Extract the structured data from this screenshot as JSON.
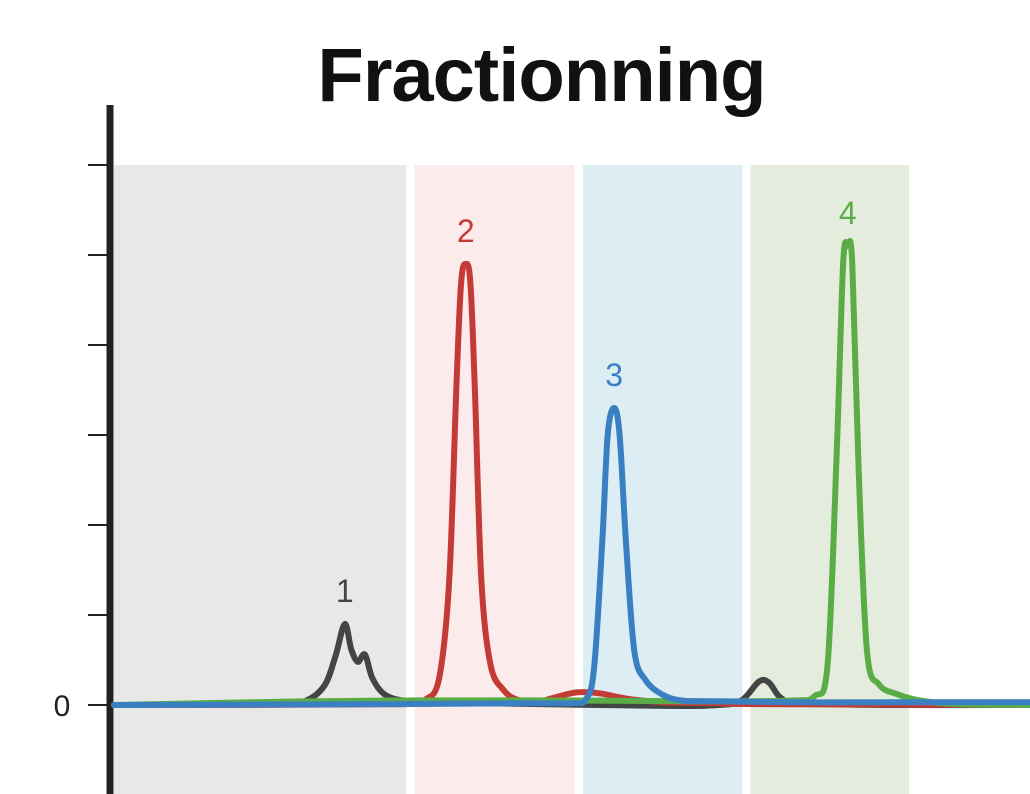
{
  "title": "Fractionning",
  "chart_data": {
    "type": "line",
    "title": "Fractionning",
    "xlabel": "",
    "ylabel": "",
    "xlim": [
      0,
      100
    ],
    "ylim": [
      -1,
      6
    ],
    "y_ticks": [
      0,
      1,
      2,
      3,
      4,
      5,
      6
    ],
    "y_tick_labels": [
      "0",
      "",
      "",
      "",
      "",
      "",
      ""
    ],
    "grid": false,
    "fractions": [
      {
        "x_start": 0,
        "x_end": 31.9,
        "color": "#e8e8e8"
      },
      {
        "x_start": 32.8,
        "x_end": 50.3,
        "color": "#fcebeb"
      },
      {
        "x_start": 51.2,
        "x_end": 68.6,
        "color": "#dceef3"
      },
      {
        "x_start": 69.5,
        "x_end": 86.8,
        "color": "#e3ecdd"
      }
    ],
    "series": [
      {
        "color": "#444444",
        "peak_label": "1",
        "peak_x": 25.2,
        "peak_y": 0.9,
        "points": [
          [
            0,
            0
          ],
          [
            18,
            0.01
          ],
          [
            21,
            0.05
          ],
          [
            23,
            0.22
          ],
          [
            24.2,
            0.55
          ],
          [
            25.2,
            0.9
          ],
          [
            25.9,
            0.62
          ],
          [
            26.6,
            0.48
          ],
          [
            27.4,
            0.56
          ],
          [
            28.2,
            0.3
          ],
          [
            29.5,
            0.12
          ],
          [
            31.5,
            0.05
          ],
          [
            34,
            0.03
          ],
          [
            40,
            0.02
          ],
          [
            60,
            -0.01
          ],
          [
            66,
            0
          ],
          [
            68.5,
            0.05
          ],
          [
            70.4,
            0.26
          ],
          [
            71.5,
            0.25
          ],
          [
            72.8,
            0.08
          ],
          [
            75,
            0.02
          ],
          [
            85,
            0
          ],
          [
            100,
            0
          ]
        ]
      },
      {
        "color": "#c43b35",
        "peak_label": "2",
        "peak_x": 38.4,
        "peak_y": 4.9,
        "points": [
          [
            0,
            0
          ],
          [
            32,
            0.01
          ],
          [
            34,
            0.06
          ],
          [
            35.5,
            0.3
          ],
          [
            36.6,
            1.4
          ],
          [
            37.4,
            3.6
          ],
          [
            37.9,
            4.7
          ],
          [
            38.4,
            4.9
          ],
          [
            38.9,
            4.7
          ],
          [
            39.4,
            3.5
          ],
          [
            40.1,
            1.4
          ],
          [
            41.1,
            0.45
          ],
          [
            42.5,
            0.17
          ],
          [
            44,
            0.06
          ],
          [
            46,
            0.03
          ],
          [
            48,
            0.08
          ],
          [
            50.5,
            0.14
          ],
          [
            53,
            0.13
          ],
          [
            56,
            0.07
          ],
          [
            60,
            0.03
          ],
          [
            66,
            0.02
          ],
          [
            70,
            0.01
          ],
          [
            100,
            0
          ]
        ]
      },
      {
        "color": "#5aad46",
        "peak_label": "4",
        "peak_x": 80.1,
        "peak_y": 5.1,
        "points": [
          [
            0,
            0
          ],
          [
            15,
            0.03
          ],
          [
            30,
            0.05
          ],
          [
            50,
            0.05
          ],
          [
            65,
            0.04
          ],
          [
            74,
            0.05
          ],
          [
            76.5,
            0.1
          ],
          [
            77.9,
            0.45
          ],
          [
            78.9,
            2.8
          ],
          [
            79.6,
            4.9
          ],
          [
            80.1,
            5.1
          ],
          [
            80.6,
            4.9
          ],
          [
            81.3,
            2.6
          ],
          [
            82.2,
            0.6
          ],
          [
            83.5,
            0.23
          ],
          [
            85.5,
            0.12
          ],
          [
            88,
            0.05
          ],
          [
            92,
            0.01
          ],
          [
            100,
            0
          ]
        ]
      },
      {
        "color": "#3a7fc1",
        "peak_label": "3",
        "peak_x": 54.6,
        "peak_y": 3.3,
        "points": [
          [
            0,
            0
          ],
          [
            30,
            0.01
          ],
          [
            45,
            0.02
          ],
          [
            50,
            0.02
          ],
          [
            51.5,
            0.06
          ],
          [
            52.4,
            0.4
          ],
          [
            53.3,
            1.8
          ],
          [
            53.9,
            3.0
          ],
          [
            54.6,
            3.3
          ],
          [
            55.2,
            3.0
          ],
          [
            55.9,
            1.8
          ],
          [
            56.8,
            0.6
          ],
          [
            58,
            0.28
          ],
          [
            59.8,
            0.12
          ],
          [
            62,
            0.05
          ],
          [
            66,
            0.04
          ],
          [
            75,
            0.03
          ],
          [
            85,
            0.03
          ],
          [
            100,
            0.03
          ]
        ]
      }
    ]
  }
}
